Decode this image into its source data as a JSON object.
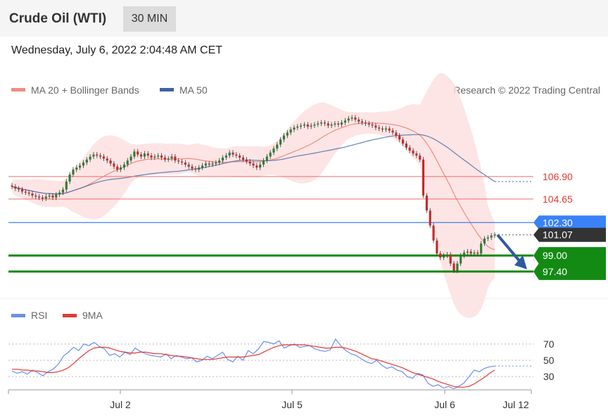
{
  "header": {
    "title": "Crude Oil (WTI)",
    "interval": "30 MIN"
  },
  "timestamp": "Wednesday, July 6, 2022 2:04:48 AM CET",
  "legend": {
    "ma20_label": "MA 20 + Bollinger Bands",
    "ma50_label": "MA 50",
    "copyright": "Research © 2022 Trading Central"
  },
  "rsi_legend": {
    "rsi_label": "RSI",
    "ma_label": "9MA"
  },
  "colors": {
    "ma20": "#f28b82",
    "ma50": "#3d64a8",
    "band": "#fde0e0",
    "up": "#2e7d32",
    "down": "#c62828",
    "support": "#138a13",
    "pivot": "#3a82f7",
    "resistance": "#f26b6b",
    "rsi": "#6b8fe8",
    "rsi_ma": "#e53935"
  },
  "chart_data": [
    {
      "type": "candlestick",
      "name": "price",
      "x_ticks": [
        "Jul 2",
        "Jul 5",
        "Jul 6",
        "Jul 12"
      ],
      "ylim": [
        95.0,
        114.0
      ],
      "last_price": "101.07",
      "levels": [
        {
          "label": "106.90",
          "value": 106.9,
          "kind": "resistance"
        },
        {
          "label": "104.65",
          "value": 104.65,
          "kind": "resistance"
        },
        {
          "label": "102.30",
          "value": 102.3,
          "kind": "pivot"
        },
        {
          "label": "99.00",
          "value": 99.0,
          "kind": "support"
        },
        {
          "label": "97.40",
          "value": 97.4,
          "kind": "support"
        }
      ],
      "closes": [
        105.9,
        105.7,
        105.6,
        105.4,
        105.3,
        105.2,
        105.0,
        104.9,
        104.8,
        104.7,
        104.9,
        105.0,
        104.8,
        105.1,
        105.3,
        105.6,
        106.4,
        107.1,
        107.6,
        107.8,
        108.0,
        108.3,
        108.6,
        108.9,
        109.1,
        109.0,
        108.9,
        108.7,
        108.5,
        108.2,
        107.9,
        107.6,
        107.8,
        108.1,
        108.5,
        108.9,
        109.4,
        109.1,
        108.9,
        109.2,
        109.0,
        108.8,
        108.9,
        109.0,
        108.8,
        108.6,
        108.7,
        108.9,
        108.5,
        108.4,
        108.3,
        108.1,
        107.9,
        107.7,
        107.6,
        107.8,
        108.0,
        108.2,
        108.1,
        108.2,
        108.3,
        108.5,
        108.8,
        109.0,
        109.3,
        109.1,
        109.0,
        108.8,
        108.6,
        108.4,
        108.2,
        108.0,
        107.8,
        108.1,
        108.5,
        108.9,
        109.3,
        109.7,
        110.1,
        110.6,
        111.0,
        111.3,
        111.6,
        111.8,
        111.9,
        112.0,
        112.1,
        111.9,
        112.0,
        112.1,
        112.2,
        112.3,
        112.2,
        112.0,
        112.1,
        112.2,
        112.1,
        112.3,
        112.5,
        112.7,
        112.8,
        112.6,
        112.4,
        112.3,
        112.2,
        112.1,
        112.0,
        111.8,
        111.7,
        111.6,
        111.7,
        111.5,
        111.3,
        111.0,
        110.6,
        110.2,
        109.8,
        109.5,
        109.2,
        109.0,
        108.6,
        105.0,
        103.5,
        102.0,
        100.5,
        99.2,
        98.8,
        99.0,
        99.1,
        98.2,
        97.5,
        98.2,
        99.0,
        99.3,
        99.4,
        99.2,
        99.3,
        99.2,
        100.2,
        100.7,
        100.8,
        101.0,
        101.07
      ]
    },
    {
      "type": "line",
      "name": "rsi",
      "yticks": [
        30,
        50,
        70
      ],
      "ylim": [
        12,
        88
      ],
      "series": [
        {
          "name": "RSI",
          "values": [
            37,
            34,
            36,
            33,
            38,
            35,
            31,
            36,
            39,
            45,
            55,
            60,
            66,
            62,
            70,
            68,
            72,
            67,
            64,
            56,
            58,
            54,
            60,
            57,
            65,
            61,
            58,
            56,
            55,
            54,
            58,
            52,
            56,
            54,
            52,
            53,
            48,
            50,
            55,
            52,
            56,
            60,
            51,
            48,
            55,
            50,
            62,
            58,
            64,
            73,
            72,
            70,
            74,
            65,
            68,
            70,
            66,
            67,
            68,
            64,
            62,
            61,
            63,
            76,
            68,
            62,
            58,
            56,
            52,
            48,
            46,
            50,
            44,
            40,
            42,
            38,
            36,
            30,
            28,
            34,
            32,
            22,
            18,
            20,
            16,
            18,
            15,
            18,
            22,
            30,
            38,
            36,
            40,
            42,
            43
          ]
        },
        {
          "name": "9MA",
          "values": [
            39,
            39,
            38,
            38,
            37,
            37,
            36,
            35,
            35,
            36,
            38,
            41,
            46,
            52,
            57,
            62,
            65,
            66,
            66,
            65,
            63,
            61,
            60,
            59,
            59,
            60,
            60,
            59,
            58,
            58,
            57,
            56,
            55,
            55,
            54,
            53,
            52,
            51,
            51,
            51,
            52,
            53,
            54,
            54,
            54,
            54,
            55,
            56,
            57,
            60,
            63,
            66,
            68,
            69,
            69,
            69,
            69,
            69,
            68,
            67,
            66,
            65,
            65,
            66,
            66,
            65,
            63,
            61,
            58,
            55,
            52,
            51,
            49,
            47,
            45,
            43,
            41,
            38,
            35,
            33,
            31,
            29,
            27,
            24,
            22,
            20,
            18,
            17,
            17,
            18,
            21,
            25,
            29,
            34,
            38
          ]
        }
      ]
    }
  ]
}
